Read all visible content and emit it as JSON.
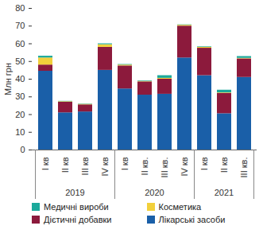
{
  "chart_data": {
    "type": "bar",
    "stacked": true,
    "y_label": "Млн грн",
    "categories": [
      "I кв",
      "II кв",
      "III кв",
      "IV кв",
      "I кв",
      "II кв.",
      "III кв.",
      "IV кв",
      "I кв",
      "II кв",
      "III кв."
    ],
    "groups": [
      {
        "name": "2019",
        "size": 4
      },
      {
        "name": "2020",
        "size": 4
      },
      {
        "name": "2021",
        "size": 3
      }
    ],
    "series": [
      {
        "name": "Лікарські засоби",
        "color": "#1a5fa8",
        "values": [
          44.5,
          21,
          21.5,
          45,
          34.5,
          31,
          31.5,
          52,
          42,
          20.5,
          41
        ]
      },
      {
        "name": "Дієтичні добавки",
        "color": "#8c1a3c",
        "values": [
          3.5,
          6,
          4,
          13,
          13,
          7.5,
          8.5,
          18,
          15.5,
          11.5,
          10.5
        ]
      },
      {
        "name": "Косметика",
        "color": "#f2d03b",
        "values": [
          4,
          0.3,
          0.3,
          1.5,
          0.5,
          0.3,
          0.5,
          0.5,
          0.5,
          0.3,
          0.3
        ]
      },
      {
        "name": "Медичні вироби",
        "color": "#1ba99b",
        "values": [
          1,
          0.2,
          0.2,
          0.5,
          0.3,
          0.3,
          1.5,
          0.2,
          0.3,
          1.5,
          1
        ]
      }
    ],
    "ylim": [
      0,
      80
    ],
    "yticks": [
      0,
      10,
      20,
      30,
      40,
      50,
      60,
      70,
      80
    ],
    "grid": false,
    "legend": "bottom"
  }
}
